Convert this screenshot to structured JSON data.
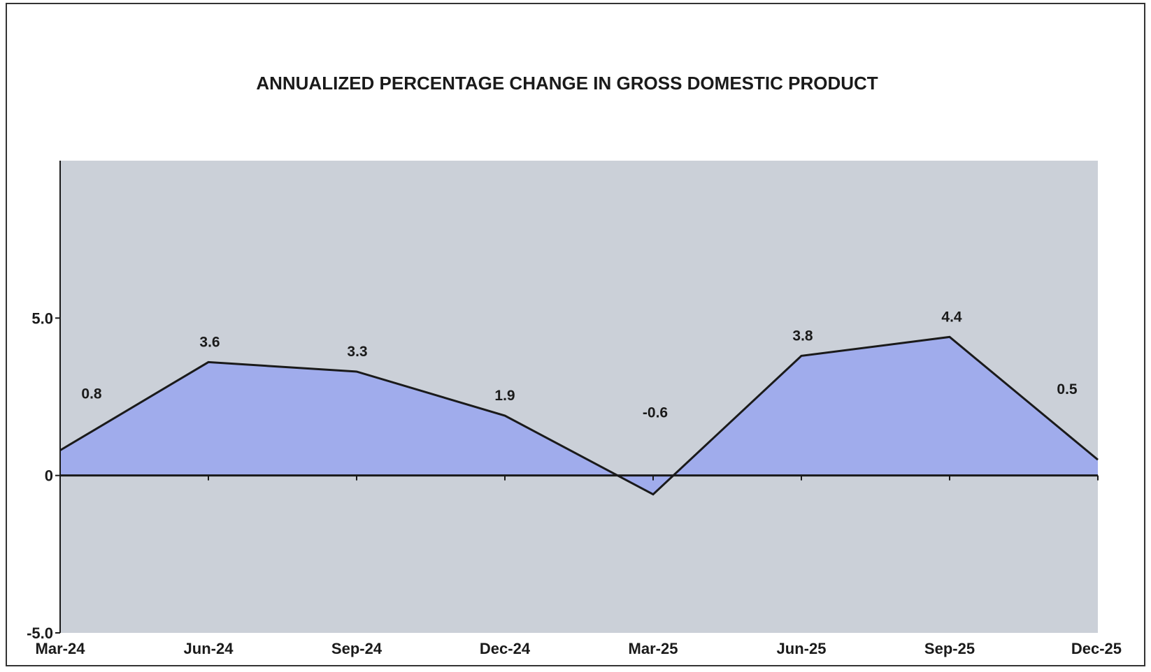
{
  "chart_data": {
    "type": "area",
    "title": "ANNUALIZED PERCENTAGE CHANGE IN GROSS DOMESTIC PRODUCT",
    "categories": [
      "Mar-24",
      "Jun-24",
      "Sep-24",
      "Dec-24",
      "Mar-25",
      "Jun-25",
      "Sep-25",
      "Dec-25"
    ],
    "series": [
      {
        "values": [
          0.8,
          3.6,
          3.3,
          1.9,
          -0.6,
          3.8,
          4.4,
          0.5
        ]
      }
    ],
    "data_labels": [
      "0.8",
      "3.6",
      "3.3",
      "1.9",
      "-0.6",
      "3.8",
      "4.4",
      "0.5"
    ],
    "y_ticks": [
      {
        "value": 5.0,
        "label": "5.0"
      },
      {
        "value": 0,
        "label": "0"
      },
      {
        "value": -5.0,
        "label": "-5.0"
      }
    ],
    "ylim": [
      -5.0,
      10.0
    ],
    "grid": false,
    "legend": "none",
    "colors": {
      "plot_background": "#cbd0d8",
      "area_fill": "#a0acec",
      "line": "#1a1a1a",
      "axis": "#1a1a1a"
    }
  }
}
